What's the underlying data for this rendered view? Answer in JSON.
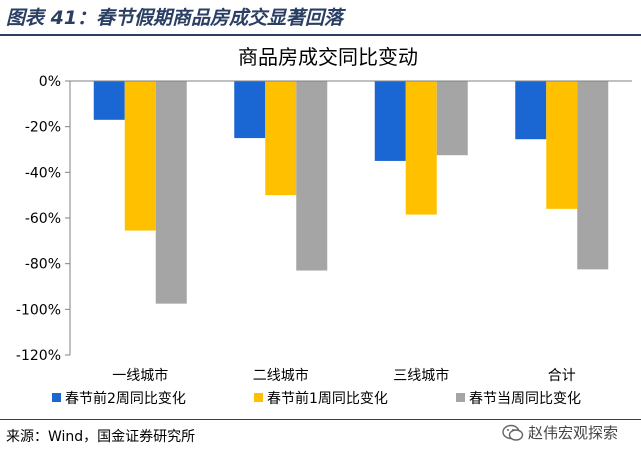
{
  "figure_title": "图表 41：春节假期商品房成交显著回落",
  "source": "来源：Wind，国金证券研究所",
  "watermark": "赵伟宏观探索",
  "chart_data": {
    "type": "bar",
    "title": "商品房成交同比变动",
    "xlabel": "",
    "ylabel": "",
    "categories": [
      "一线城市",
      "二线城市",
      "三线城市",
      "合计"
    ],
    "series": [
      {
        "name": "春节前2周同比变化",
        "color": "#1a66d2",
        "values": [
          -17,
          -25,
          -35,
          -25.5
        ]
      },
      {
        "name": "春节前1周同比变化",
        "color": "#ffc000",
        "values": [
          -65.5,
          -50,
          -58.5,
          -56
        ]
      },
      {
        "name": "春节当周同比变化",
        "color": "#a5a5a5",
        "values": [
          -97.5,
          -83,
          -32.5,
          -82.5
        ]
      }
    ],
    "yticks": [
      "0%",
      "-20%",
      "-40%",
      "-60%",
      "-80%",
      "-100%",
      "-120%"
    ],
    "ylim": [
      -120,
      0
    ],
    "grid": false,
    "legend_position": "bottom"
  }
}
